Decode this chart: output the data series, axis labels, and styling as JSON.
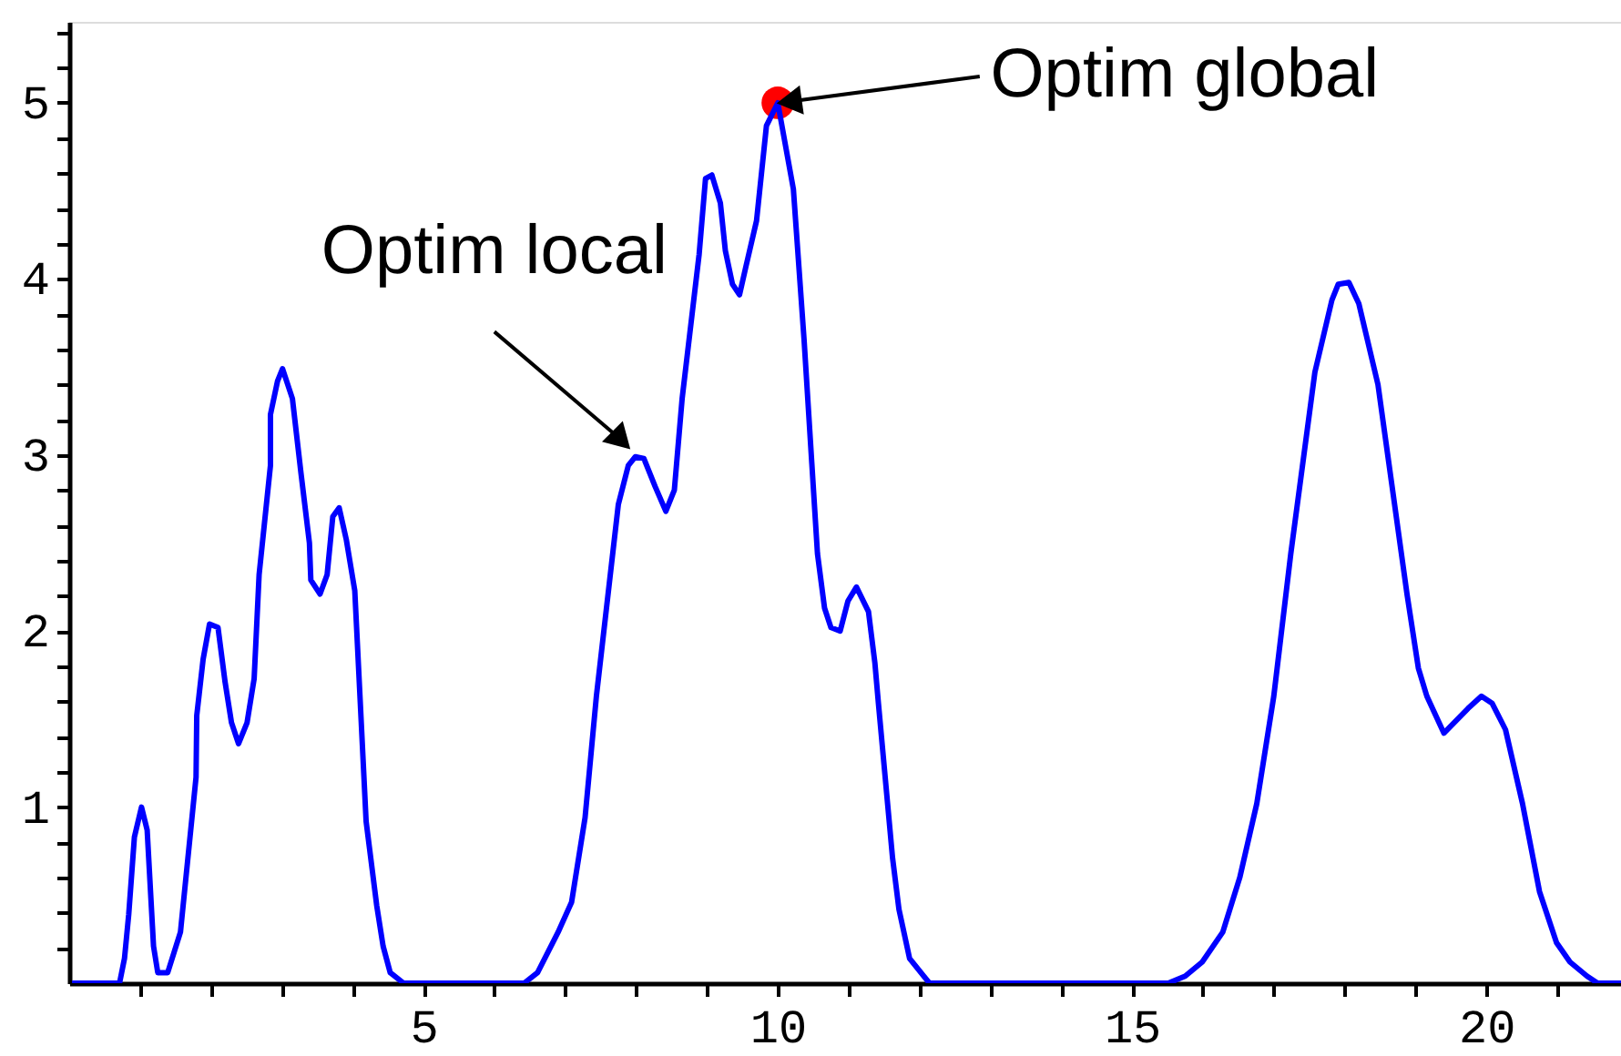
{
  "chart_data": {
    "type": "line",
    "xlim": [
      0,
      21.9
    ],
    "ylim": [
      0,
      5.46
    ],
    "xticks": [
      {
        "value": 1,
        "label": null
      },
      {
        "value": 2,
        "label": null
      },
      {
        "value": 3,
        "label": null
      },
      {
        "value": 4,
        "label": null
      },
      5,
      {
        "value": 6,
        "label": null
      },
      {
        "value": 7,
        "label": null
      },
      {
        "value": 8,
        "label": null
      },
      {
        "value": 9,
        "label": null
      },
      10,
      {
        "value": 11,
        "label": null
      },
      {
        "value": 12,
        "label": null
      },
      {
        "value": 13,
        "label": null
      },
      {
        "value": 14,
        "label": null
      },
      15,
      {
        "value": 16,
        "label": null
      },
      {
        "value": 17,
        "label": null
      },
      {
        "value": 18,
        "label": null
      },
      {
        "value": 19,
        "label": null
      },
      20,
      {
        "value": 21,
        "label": null
      }
    ],
    "yticks": [
      {
        "value": 0.2,
        "label": null
      },
      {
        "value": 0.4,
        "label": null
      },
      {
        "value": 0.6,
        "label": null
      },
      {
        "value": 0.8,
        "label": null
      },
      1,
      {
        "value": 1.2,
        "label": null
      },
      {
        "value": 1.4,
        "label": null
      },
      {
        "value": 1.6,
        "label": null
      },
      {
        "value": 1.8,
        "label": null
      },
      2,
      {
        "value": 2.2,
        "label": null
      },
      {
        "value": 2.4,
        "label": null
      },
      {
        "value": 2.6,
        "label": null
      },
      {
        "value": 2.8,
        "label": null
      },
      3,
      {
        "value": 3.2,
        "label": null
      },
      {
        "value": 3.4,
        "label": null
      },
      {
        "value": 3.6,
        "label": null
      },
      {
        "value": 3.8,
        "label": null
      },
      4,
      {
        "value": 4.2,
        "label": null
      },
      {
        "value": 4.4,
        "label": null
      },
      {
        "value": 4.6,
        "label": null
      },
      {
        "value": 4.8,
        "label": null
      },
      5,
      {
        "value": 5.2,
        "label": null
      },
      {
        "value": 5.4,
        "label": null
      }
    ],
    "grid": false,
    "marker": "none",
    "line_style": "solid",
    "series": [
      {
        "color": "#0000ff",
        "x": [
          0.04,
          0.71,
          0.78,
          0.84,
          0.92,
          1.02,
          1.1,
          1.19,
          1.25,
          1.39,
          1.57,
          1.79,
          1.8,
          1.89,
          1.98,
          2.1,
          2.2,
          2.29,
          2.39,
          2.51,
          2.61,
          2.68,
          2.84,
          2.84,
          2.94,
          3.01,
          3.15,
          3.27,
          3.39,
          3.41,
          3.54,
          3.64,
          3.72,
          3.81,
          3.91,
          4.03,
          4.19,
          4.34,
          4.43,
          4.53,
          4.72,
          6.42,
          6.61,
          6.9,
          7.09,
          7.28,
          7.44,
          7.75,
          7.89,
          7.99,
          8.11,
          8.27,
          8.42,
          8.54,
          8.65,
          8.89,
          8.98,
          9.07,
          9.19,
          9.26,
          9.36,
          9.46,
          9.55,
          9.7,
          9.84,
          10.0,
          10.22,
          10.37,
          10.56,
          10.66,
          10.75,
          10.88,
          10.99,
          11.11,
          11.28,
          11.37,
          11.42,
          11.62,
          11.71,
          11.86,
          12.14,
          15.51,
          15.75,
          15.99,
          16.28,
          16.52,
          16.76,
          17.0,
          17.24,
          17.58,
          17.82,
          17.91,
          18.06,
          18.2,
          18.47,
          18.88,
          19.04,
          19.16,
          19.4,
          19.74,
          19.93,
          20.08,
          20.27,
          20.51,
          20.75,
          20.99,
          21.18,
          21.42,
          21.57,
          21.9
        ],
        "values": [
          0,
          0,
          0.14,
          0.39,
          0.83,
          1.0,
          0.87,
          0.21,
          0.06,
          0.06,
          0.29,
          1.17,
          1.52,
          1.84,
          2.04,
          2.02,
          1.71,
          1.48,
          1.36,
          1.48,
          1.73,
          2.32,
          2.94,
          3.23,
          3.42,
          3.49,
          3.32,
          2.9,
          2.5,
          2.29,
          2.21,
          2.32,
          2.65,
          2.7,
          2.52,
          2.23,
          0.92,
          0.44,
          0.21,
          0.06,
          0,
          0,
          0.06,
          0.29,
          0.46,
          0.94,
          1.63,
          2.72,
          2.94,
          2.99,
          2.98,
          2.82,
          2.68,
          2.8,
          3.32,
          4.14,
          4.57,
          4.59,
          4.43,
          4.16,
          3.97,
          3.91,
          4.07,
          4.33,
          4.87,
          5.0,
          4.51,
          3.66,
          2.44,
          2.13,
          2.02,
          2.0,
          2.17,
          2.25,
          2.11,
          1.82,
          1.59,
          0.71,
          0.42,
          0.14,
          0,
          0,
          0.04,
          0.12,
          0.29,
          0.6,
          1.02,
          1.63,
          2.44,
          3.47,
          3.88,
          3.97,
          3.98,
          3.86,
          3.4,
          2.21,
          1.79,
          1.63,
          1.42,
          1.56,
          1.63,
          1.59,
          1.44,
          1.02,
          0.52,
          0.23,
          0.12,
          0.04,
          0,
          0
        ]
      },
      {
        "type": "scatter",
        "marker": "circle",
        "color": "#ff0000",
        "x": [
          10
        ],
        "values": [
          5
        ]
      }
    ],
    "annotations": [
      {
        "text": "Optim global",
        "x": 10,
        "y": 5
      },
      {
        "text": "Optim local",
        "x": 8,
        "y": 3
      }
    ]
  }
}
